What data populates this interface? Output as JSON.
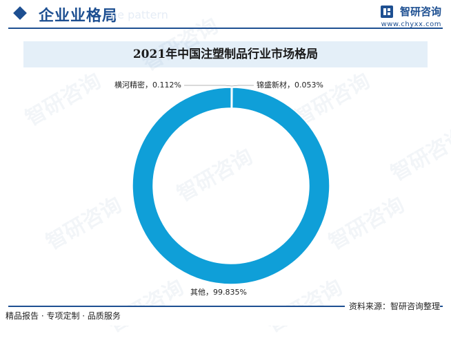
{
  "header": {
    "title": "企业业格局",
    "ghost_text": "ne pattern",
    "brand_name": "智研咨询",
    "brand_url": "www.chyxx.com"
  },
  "watermark_text": "智研咨询",
  "chart_data": {
    "type": "pie",
    "donut": true,
    "title": "2021年中国注塑制品行业市场格局",
    "slices": [
      {
        "label": "锦盛新材",
        "value": 0.053,
        "display": "锦盛新材，0.053%"
      },
      {
        "label": "其他",
        "value": 99.835,
        "display": "其他，99.835%"
      },
      {
        "label": "横河精密",
        "value": 0.112,
        "display": "横河精密，0.112%"
      }
    ],
    "colors": [
      "#0f9fd8",
      "#0f9fd8",
      "#0f9fd8"
    ]
  },
  "footer": {
    "left_text": "精品报告 · 专项定制 · 品质服务",
    "source": "资料来源：智研咨询整理"
  }
}
